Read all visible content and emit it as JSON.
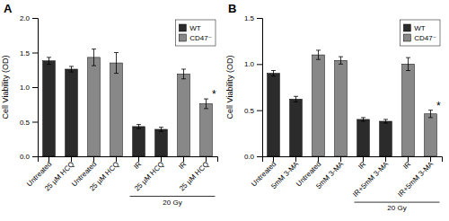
{
  "chart_data": [
    {
      "type": "bar",
      "title": "A",
      "ylabel": "Cell Viability (OD)",
      "categories": [
        "Untreated",
        "25 µM HCQ",
        "Untreated",
        "25 µM HCQ",
        "IR",
        "25 µM HCQ",
        "IR",
        "25 µM HCQ"
      ],
      "series": [
        {
          "name": "WT",
          "color": "#2b2b2b",
          "values": [
            1.38,
            1.26,
            null,
            null,
            0.43,
            0.39,
            null,
            null
          ],
          "errors": [
            0.05,
            0.04,
            null,
            null,
            0.03,
            0.03,
            null,
            null
          ]
        },
        {
          "name": "CD47⁻",
          "color": "#888888",
          "values": [
            null,
            null,
            1.43,
            1.35,
            null,
            null,
            1.19,
            0.76
          ],
          "errors": [
            null,
            null,
            0.12,
            0.15,
            null,
            null,
            0.07,
            0.07
          ]
        }
      ],
      "ylim": [
        0,
        2.0
      ],
      "yticks": [
        {
          "value": 0,
          "label": "0.0"
        },
        0.5,
        {
          "value": 1,
          "label": "1.0"
        },
        1.5,
        {
          "value": 2,
          "label": "2.0"
        }
      ],
      "legend": "upper right",
      "grid": false,
      "annotations": [
        {
          "text": "*",
          "x": 7
        },
        {
          "text": "20 Gy",
          "x": [
            4,
            7
          ]
        }
      ]
    },
    {
      "type": "bar",
      "title": "B",
      "ylabel": "Cell Viability (OD)",
      "categories": [
        "Untreated",
        "5mM 3-MA",
        "Untreated",
        "5mM 3-MA",
        "IR",
        "IR+5mM 3-MA",
        "IR",
        "IR+5mM 3-MA"
      ],
      "series": [
        {
          "name": "WT",
          "color": "#2b2b2b",
          "values": [
            0.9,
            0.62,
            null,
            null,
            0.4,
            0.38,
            null,
            null
          ],
          "errors": [
            0.03,
            0.03,
            null,
            null,
            0.02,
            0.02,
            null,
            null
          ]
        },
        {
          "name": "CD47⁻",
          "color": "#888888",
          "values": [
            null,
            null,
            1.1,
            1.04,
            null,
            null,
            1.0,
            0.46
          ],
          "errors": [
            null,
            null,
            0.05,
            0.04,
            null,
            null,
            0.07,
            0.04
          ]
        }
      ],
      "ylim": [
        0,
        1.5
      ],
      "yticks": [
        {
          "value": 0,
          "label": "0.0"
        },
        0.5,
        {
          "value": 1,
          "label": "1.0"
        },
        1.5
      ],
      "legend": "upper right",
      "grid": false,
      "annotations": [
        {
          "text": "*",
          "x": 7
        },
        {
          "text": "20 Gy",
          "x": [
            4,
            7
          ]
        }
      ]
    }
  ]
}
